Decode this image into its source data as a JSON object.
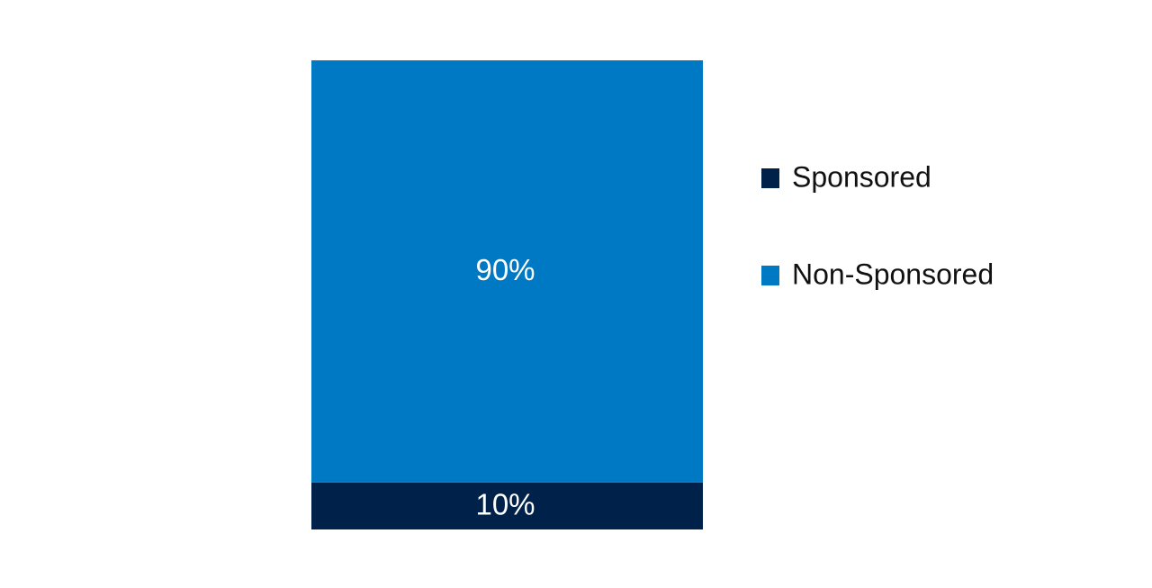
{
  "chart_data": {
    "type": "bar",
    "stacked": true,
    "series": [
      {
        "name": "Sponsored",
        "color": "#00214a",
        "values": [
          10
        ],
        "value_labels": [
          "10%"
        ]
      },
      {
        "name": "Non-Sponsored",
        "color": "#0079c4",
        "values": [
          90
        ],
        "value_labels": [
          "90%"
        ]
      }
    ]
  }
}
